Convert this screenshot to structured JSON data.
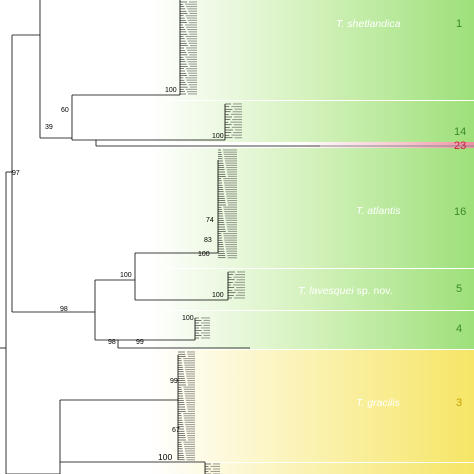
{
  "clades": [
    {
      "id": "shetlandica",
      "label": "T. shetlandica",
      "suffix": "",
      "count": "1",
      "count_color": "#3a8a2a",
      "tone": "green"
    },
    {
      "id": "clade14",
      "label": "",
      "suffix": "",
      "count": "14",
      "count_color": "#3a8a2a",
      "tone": "green"
    },
    {
      "id": "clade23",
      "label": "",
      "suffix": "",
      "count": "23",
      "count_color": "#c0203a",
      "tone": "pink"
    },
    {
      "id": "atlantis",
      "label": "T. atlantis",
      "suffix": "",
      "count": "16",
      "count_color": "#3a8a2a",
      "tone": "green"
    },
    {
      "id": "lavesquei",
      "label": "T. lavesquei",
      "suffix": " sp. nov.",
      "count": "5",
      "count_color": "#3a8a2a",
      "tone": "green"
    },
    {
      "id": "clade4",
      "label": "",
      "suffix": "",
      "count": "4",
      "count_color": "#3a8a2a",
      "tone": "green"
    },
    {
      "id": "gracilis",
      "label": "T. gracilis",
      "suffix": "",
      "count": "3",
      "count_color": "#c8a000",
      "tone": "yellow"
    }
  ],
  "support_values": {
    "s97": "97",
    "s39": "39",
    "s60": "60",
    "s98": "98",
    "s98b": "98",
    "s99": "99",
    "s100_shet": "100",
    "s100_c14": "100",
    "s74": "74",
    "s83": "83",
    "s100_atl": "100",
    "s100_mid": "100",
    "s100_lav": "100",
    "s100_c4": "100",
    "s99_gra": "99",
    "s67": "67",
    "s100_bottom": "100"
  },
  "colors": {
    "green": "#a8e38a",
    "yellow": "#f6ea7a",
    "pink": "#f0a0b0",
    "separator": "#ffffff"
  }
}
